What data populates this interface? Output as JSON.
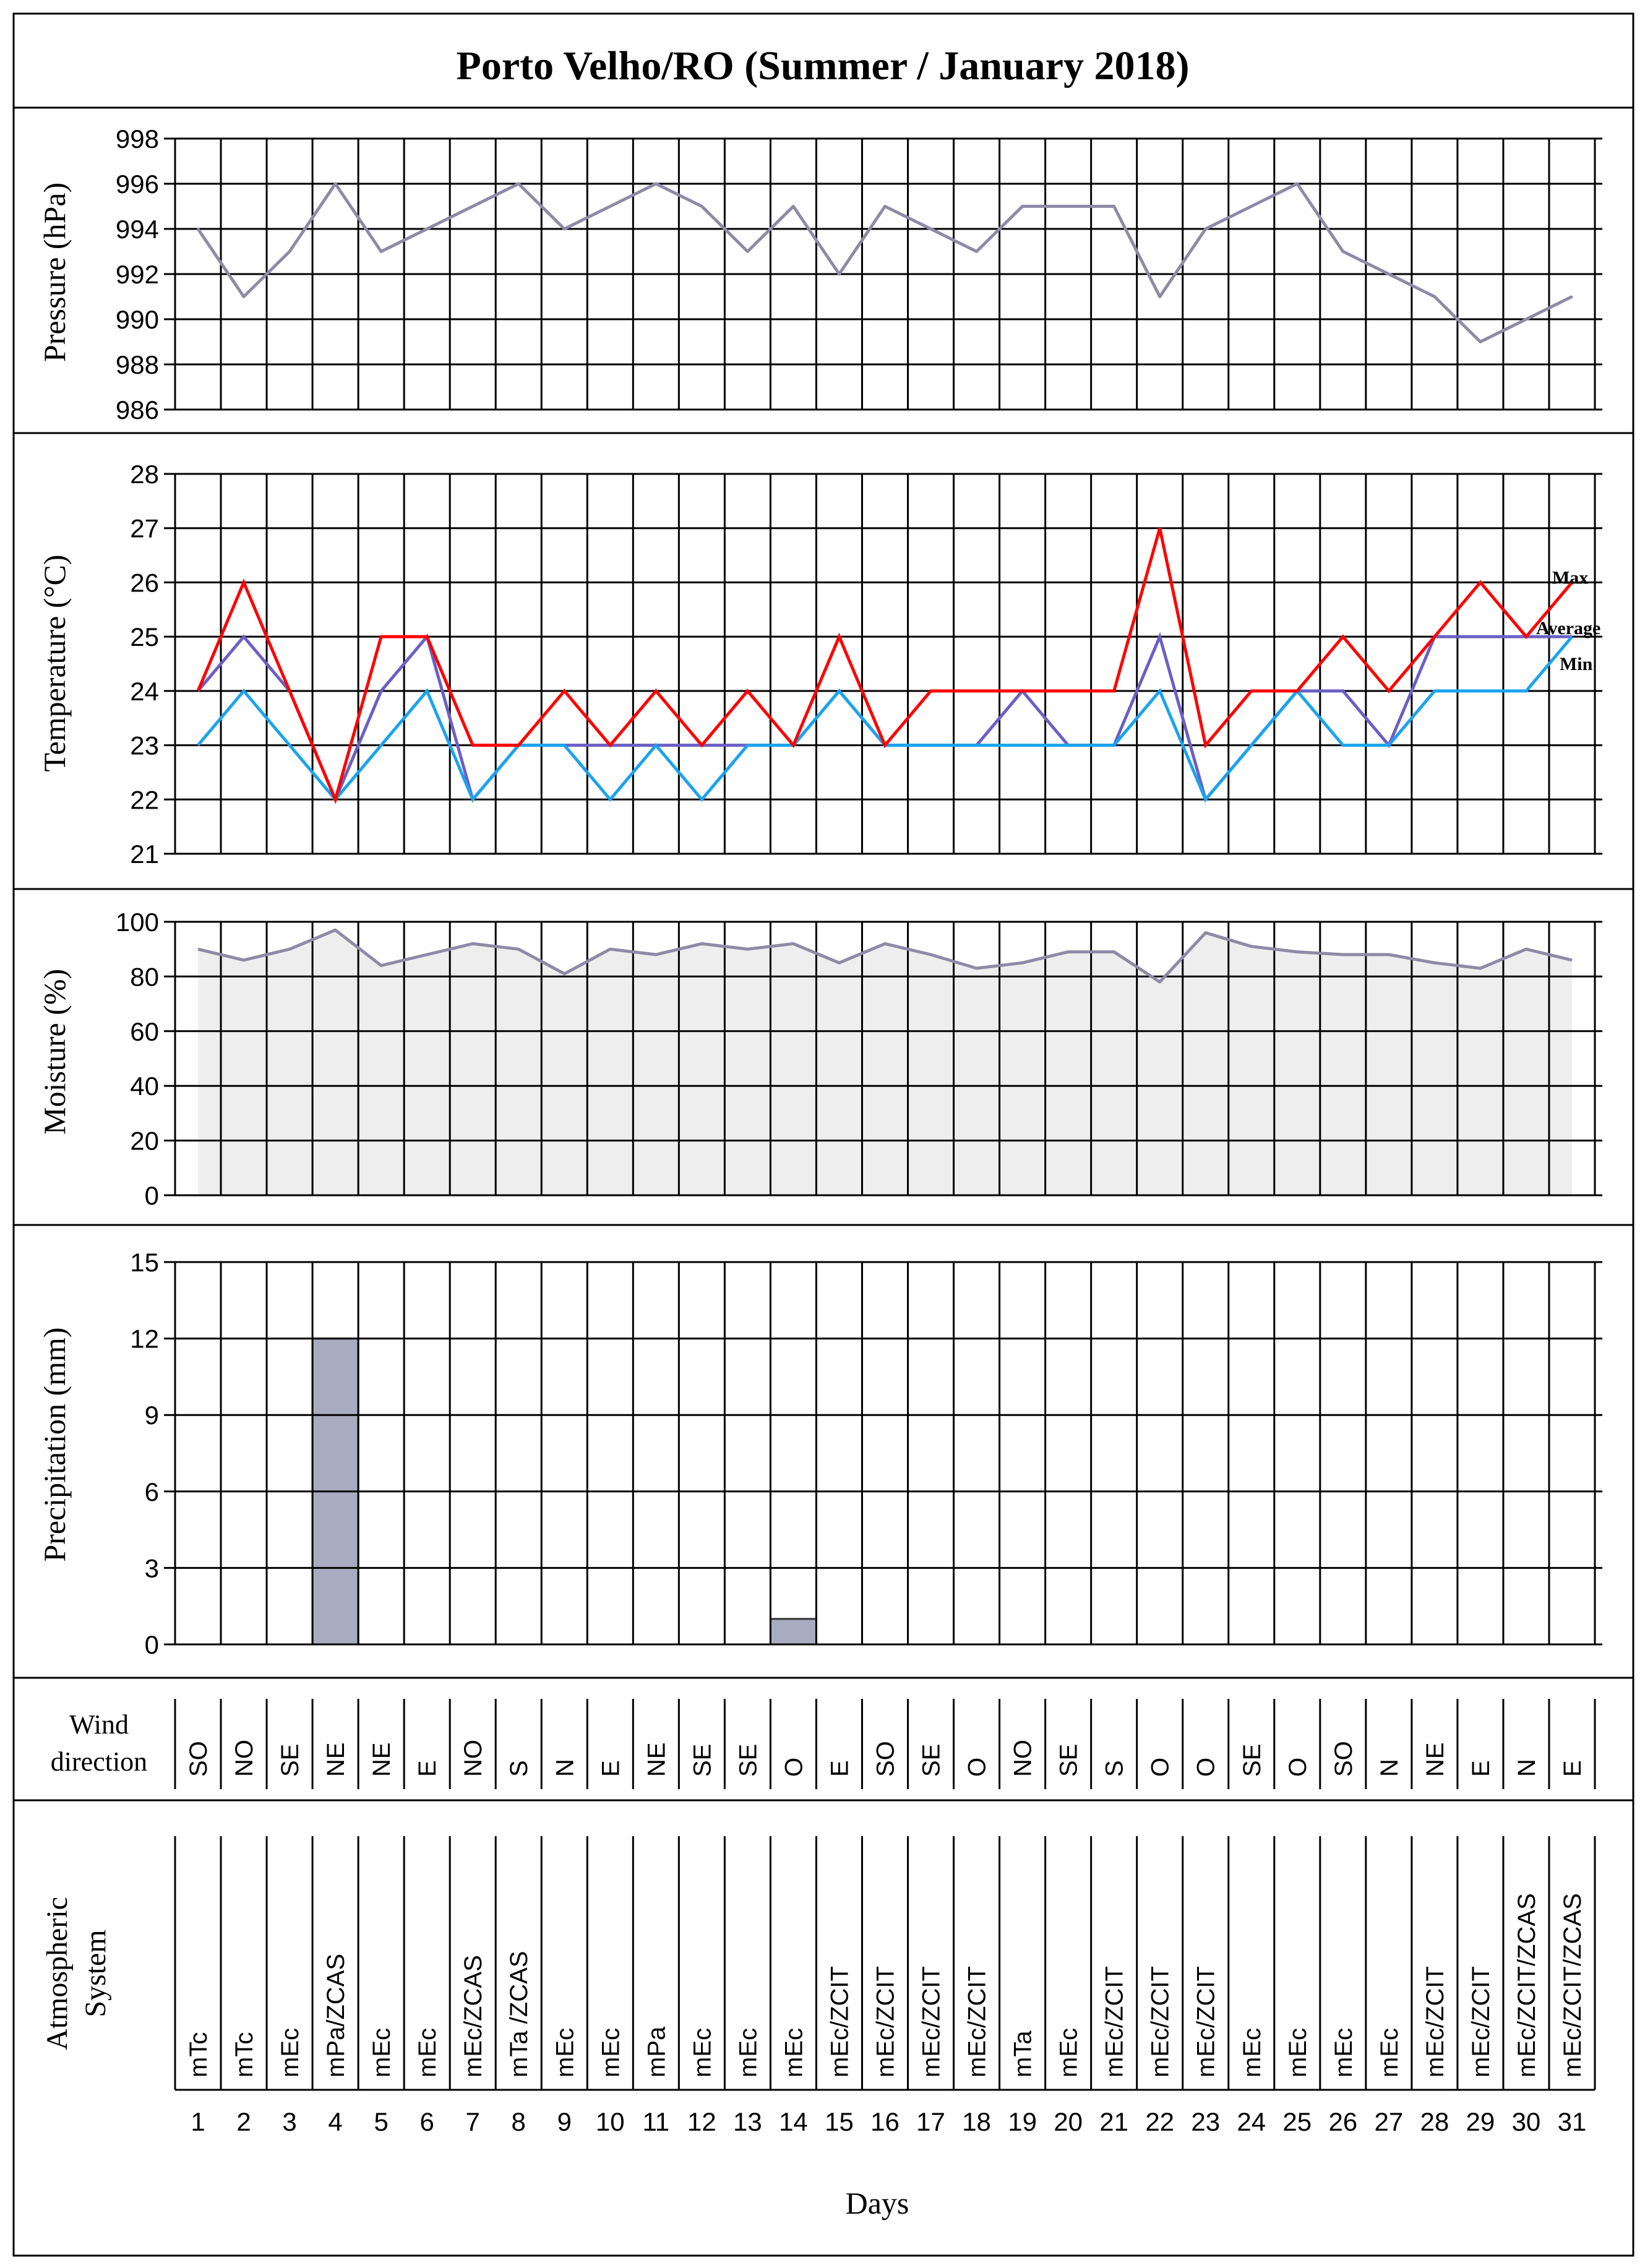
{
  "title": "Porto Velho/RO (Summer / January 2018)",
  "days": [
    "1",
    "2",
    "3",
    "4",
    "5",
    "6",
    "7",
    "8",
    "9",
    "10",
    "11",
    "12",
    "13",
    "14",
    "15",
    "16",
    "17",
    "18",
    "19",
    "20",
    "21",
    "22",
    "23",
    "24",
    "25",
    "26",
    "27",
    "28",
    "29",
    "30",
    "31"
  ],
  "xlabel": "Days",
  "colors": {
    "grid": "#000000",
    "pressure_line": "#8e8aa6",
    "moisture_line": "#8e8aa6",
    "moisture_fill": "#eeeeee",
    "precip_bar": "#a9abc0",
    "temp_max": "#ff0000",
    "temp_avg": "#6b5fc4",
    "temp_min": "#1aa3ef"
  },
  "chart_data": [
    {
      "name": "pressure",
      "type": "line",
      "ylabel": "Pressure  (hPa)",
      "ylim": [
        986,
        998
      ],
      "yticks": [
        "986",
        "988",
        "990",
        "992",
        "994",
        "996",
        "998"
      ],
      "series": [
        {
          "name": "Pressure",
          "values": [
            994,
            991,
            993,
            996,
            993,
            994,
            995,
            996,
            994,
            995,
            996,
            995,
            993,
            995,
            992,
            995,
            994,
            993,
            995,
            995,
            995,
            991,
            994,
            995,
            996,
            993,
            992,
            991,
            989,
            990,
            991
          ]
        }
      ]
    },
    {
      "name": "temperature",
      "type": "line",
      "ylabel": "Temperature  (°C)",
      "ylim": [
        21,
        28
      ],
      "yticks": [
        "21",
        "22",
        "23",
        "24",
        "25",
        "26",
        "27",
        "28"
      ],
      "series": [
        {
          "name": "Max",
          "values": [
            24,
            26,
            24,
            22,
            25,
            25,
            23,
            23,
            24,
            23,
            24,
            23,
            24,
            23,
            25,
            23,
            24,
            24,
            24,
            24,
            24,
            27,
            23,
            24,
            24,
            25,
            24,
            25,
            26,
            25,
            26
          ]
        },
        {
          "name": "Average",
          "values": [
            24,
            25,
            24,
            22,
            24,
            25,
            22,
            23,
            23,
            23,
            23,
            23,
            23,
            23,
            24,
            23,
            23,
            23,
            24,
            23,
            23,
            25,
            22,
            23,
            24,
            24,
            23,
            25,
            25,
            25,
            25
          ]
        },
        {
          "name": "Min",
          "values": [
            23,
            24,
            23,
            22,
            23,
            24,
            22,
            23,
            23,
            22,
            23,
            22,
            23,
            23,
            24,
            23,
            23,
            23,
            23,
            23,
            23,
            24,
            22,
            23,
            24,
            23,
            23,
            24,
            24,
            24,
            25
          ]
        }
      ],
      "legend": [
        "Max",
        "Average",
        "Min"
      ]
    },
    {
      "name": "moisture",
      "type": "area",
      "ylabel": "Moisture  (%)",
      "ylim": [
        0,
        100
      ],
      "yticks": [
        "0",
        "20",
        "40",
        "60",
        "80",
        "100"
      ],
      "series": [
        {
          "name": "Moisture",
          "values": [
            90,
            86,
            90,
            97,
            84,
            88,
            92,
            90,
            81,
            90,
            88,
            92,
            90,
            92,
            85,
            92,
            88,
            83,
            85,
            89,
            89,
            78,
            96,
            91,
            89,
            88,
            88,
            85,
            83,
            90,
            86
          ]
        }
      ]
    },
    {
      "name": "precipitation",
      "type": "bar",
      "ylabel": "Precipitation (mm)",
      "ylim": [
        0,
        15
      ],
      "yticks": [
        "0",
        "3",
        "6",
        "9",
        "12",
        "15"
      ],
      "series": [
        {
          "name": "Precipitation",
          "values": [
            0,
            0,
            0,
            12,
            0,
            0,
            0,
            0,
            0,
            0,
            0,
            0,
            0,
            1,
            0,
            0,
            0,
            0,
            0,
            0,
            0,
            0,
            0,
            0,
            0,
            0,
            0,
            0,
            0,
            0,
            0
          ]
        }
      ]
    },
    {
      "name": "wind_direction",
      "type": "table",
      "label_line1": "Wind",
      "label_line2": "direction",
      "values": [
        "SO",
        "NO",
        "SE",
        "NE",
        "NE",
        "E",
        "NO",
        "S",
        "N",
        "E",
        "NE",
        "SE",
        "SE",
        "O",
        "E",
        "SO",
        "SE",
        "O",
        "NO",
        "SE",
        "S",
        "O",
        "O",
        "SE",
        "O",
        "SO",
        "N",
        "NE",
        "E",
        "N",
        "E"
      ]
    },
    {
      "name": "atmospheric_system",
      "type": "table",
      "label_line1": "Atmospheric",
      "label_line2": "System",
      "values": [
        "mTc",
        "mTc",
        "mEc",
        "mPa/ZCAS",
        "mEc",
        "mEc",
        "mEc/ZCAS",
        "mTa /ZCAS",
        "mEc",
        "mEc",
        "mPa",
        "mEc",
        "mEc",
        "mEc",
        "mEc/ZCIT",
        "mEc/ZCIT",
        "mEc/ZCIT",
        "mEc/ZCIT",
        "mTa",
        "mEc",
        "mEc/ZCIT",
        "mEc/ZCIT",
        "mEc/ZCIT",
        "mEc",
        "mEc",
        "mEc",
        "mEc",
        "mEc/ZCIT",
        "mEc/ZCIT",
        "mEc/ZCIT/ZCAS",
        "mEc/ZCIT/ZCAS"
      ]
    }
  ]
}
